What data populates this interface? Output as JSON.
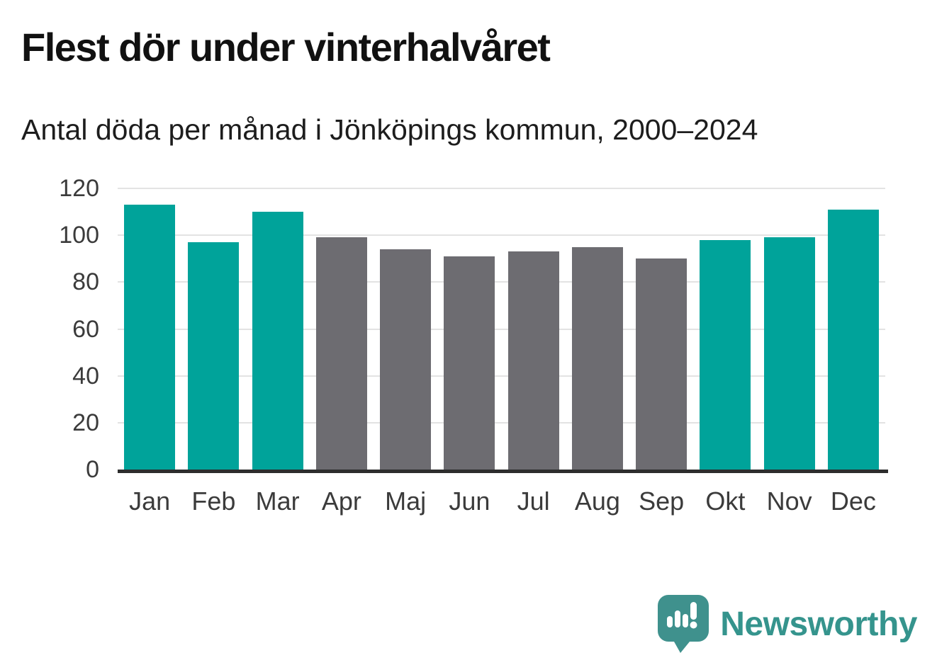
{
  "header": {
    "title": "Flest dör under vinterhalvåret",
    "subtitle": "Antal döda per månad i Jönköpings kommun, 2000–2024"
  },
  "chart_data": {
    "type": "bar",
    "title": "Flest dör under vinterhalvåret",
    "subtitle": "Antal döda per månad i Jönköpings kommun, 2000–2024",
    "categories": [
      "Jan",
      "Feb",
      "Mar",
      "Apr",
      "Maj",
      "Jun",
      "Jul",
      "Aug",
      "Sep",
      "Okt",
      "Nov",
      "Dec"
    ],
    "values": [
      113,
      97,
      110,
      99,
      94,
      91,
      93,
      95,
      90,
      98,
      99,
      111
    ],
    "bar_colors": [
      "#00a39a",
      "#00a39a",
      "#00a39a",
      "#6d6c71",
      "#6d6c71",
      "#6d6c71",
      "#6d6c71",
      "#6d6c71",
      "#6d6c71",
      "#00a39a",
      "#00a39a",
      "#00a39a"
    ],
    "xlabel": "",
    "ylabel": "",
    "ylim": [
      0,
      120
    ],
    "yticks": [
      0,
      20,
      40,
      60,
      80,
      100,
      120
    ],
    "grid": true,
    "legend_position": "none"
  },
  "colors": {
    "accent_teal": "#00a39a",
    "neutral_gray": "#6d6c71",
    "gridline": "#e3e3e3",
    "axis_line": "#2d2d2d",
    "title_text": "#111111",
    "label_text": "#3b3b3b",
    "logo_bubble": "#3f918d",
    "brand_teal": "#35948d"
  },
  "footer": {
    "brand": "Newsworthy"
  }
}
